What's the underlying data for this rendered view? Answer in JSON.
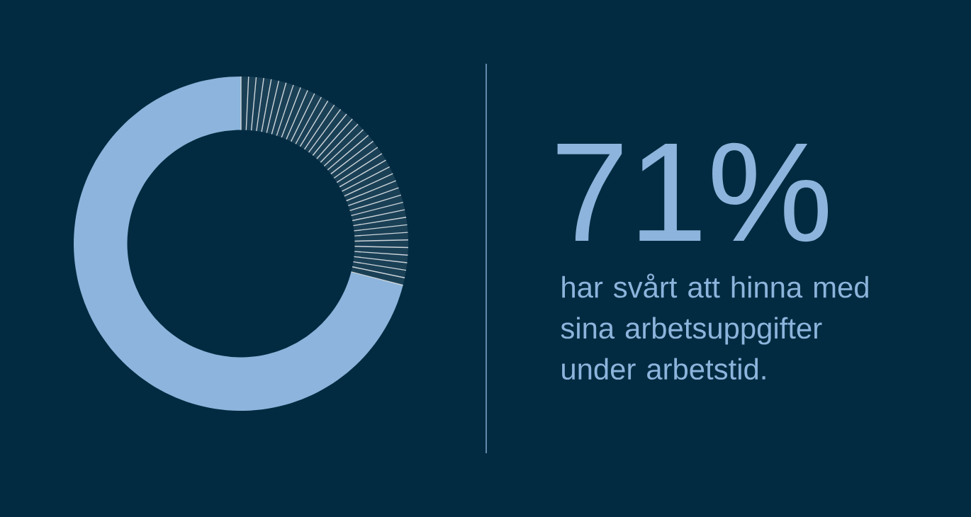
{
  "chart_data": {
    "type": "donut",
    "title": "71%",
    "subtitle": "har svårt att hinna med sina arbetsuppgifter under arbetstid.",
    "categories": [
      null,
      null
    ],
    "values": [
      71,
      29
    ],
    "colors": [
      "#8cb4dc",
      "#1a4056"
    ]
  }
}
